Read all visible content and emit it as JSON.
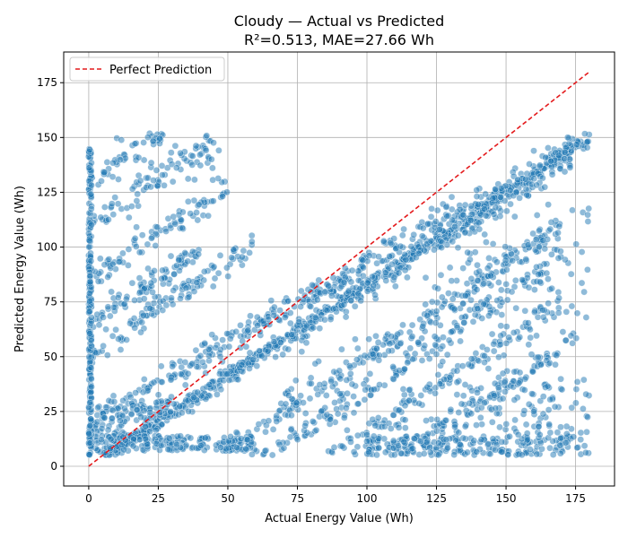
{
  "chart_data": {
    "type": "scatter",
    "title": "Cloudy — Actual vs Predicted",
    "subtitle": "R²=0.513, MAE=27.66 Wh",
    "xlabel": "Actual Energy Value (Wh)",
    "ylabel": "Predicted Energy Value (Wh)",
    "xlim": [
      -9,
      189
    ],
    "ylim": [
      -9,
      189
    ],
    "xticks": [
      0,
      25,
      50,
      75,
      100,
      125,
      150,
      175
    ],
    "yticks": [
      0,
      25,
      50,
      75,
      100,
      125,
      150,
      175
    ],
    "grid": true,
    "legend": {
      "placement": "top-left",
      "entries": [
        "Perfect Prediction"
      ]
    },
    "colors": {
      "points": "#1f77b4",
      "point_edge": "#ffffff",
      "line": "#e41a1c",
      "grid": "#b0b0b0",
      "axes": "#000000"
    },
    "reference_line": {
      "name": "Perfect Prediction",
      "x": [
        0,
        180
      ],
      "y": [
        0,
        180
      ]
    },
    "clusters": [
      {
        "kind": "line",
        "x": [
          0,
          180
        ],
        "slope": 0.83,
        "intercept": 0,
        "n": 520,
        "spread": 1.5
      },
      {
        "kind": "line",
        "x": [
          0,
          180
        ],
        "slope": 0.72,
        "intercept": 20,
        "n": 420,
        "spread": 3
      },
      {
        "kind": "line",
        "x": [
          0,
          175
        ],
        "slope": 0.8,
        "intercept": 0,
        "n": 260,
        "spread": 2.5
      },
      {
        "kind": "line",
        "x": [
          30,
          170
        ],
        "slope": 0.85,
        "intercept": -35,
        "n": 260,
        "spread": 3
      },
      {
        "kind": "line",
        "x": [
          40,
          165
        ],
        "slope": 0.85,
        "intercept": -50,
        "n": 200,
        "spread": 3
      },
      {
        "kind": "line",
        "x": [
          60,
          170
        ],
        "slope": 0.85,
        "intercept": -70,
        "n": 160,
        "spread": 3
      },
      {
        "kind": "line",
        "x": [
          100,
          175
        ],
        "slope": 0.85,
        "intercept": -90,
        "n": 120,
        "spread": 3
      },
      {
        "kind": "line",
        "x": [
          0,
          60
        ],
        "slope": 0.85,
        "intercept": 50,
        "n": 110,
        "spread": 3
      },
      {
        "kind": "line",
        "x": [
          0,
          40
        ],
        "slope": 0.85,
        "intercept": 65,
        "n": 90,
        "spread": 3
      },
      {
        "kind": "line",
        "x": [
          0,
          50
        ],
        "slope": 0.85,
        "intercept": 85,
        "n": 90,
        "spread": 3
      },
      {
        "kind": "line",
        "x": [
          0,
          45
        ],
        "slope": 0.85,
        "intercept": 110,
        "n": 70,
        "spread": 3
      },
      {
        "kind": "line",
        "x": [
          0,
          30
        ],
        "slope": 0.85,
        "intercept": 130,
        "n": 50,
        "spread": 3
      },
      {
        "kind": "line",
        "x": [
          0,
          30
        ],
        "slope": 0.5,
        "intercept": 15,
        "n": 80,
        "spread": 3
      },
      {
        "kind": "band",
        "x": [
          0,
          60
        ],
        "y": [
          7,
          14
        ],
        "n": 170
      },
      {
        "kind": "band",
        "x": [
          100,
          180
        ],
        "y": [
          5,
          14
        ],
        "n": 220
      },
      {
        "kind": "band",
        "x": [
          130,
          180
        ],
        "y": [
          14,
          40
        ],
        "n": 110
      },
      {
        "kind": "band",
        "x": [
          0,
          1
        ],
        "y": [
          5,
          145
        ],
        "n": 220
      },
      {
        "kind": "band",
        "x": [
          120,
          180
        ],
        "y": [
          55,
          120
        ],
        "n": 130
      },
      {
        "kind": "band",
        "x": [
          70,
          130
        ],
        "y": [
          15,
          60
        ],
        "n": 60
      },
      {
        "kind": "band",
        "x": [
          10,
          50
        ],
        "y": [
          130,
          152
        ],
        "n": 30
      }
    ]
  }
}
